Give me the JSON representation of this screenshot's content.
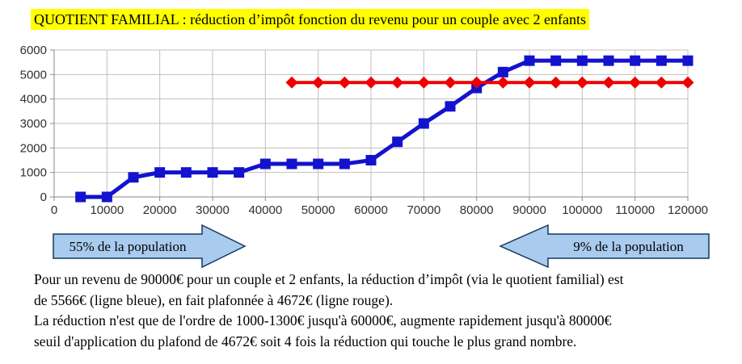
{
  "title": {
    "text": "QUOTIENT FAMILIAL : réduction d’impôt fonction du revenu pour un couple avec 2 enfants",
    "highlight_color": "#ffff00"
  },
  "chart_data": {
    "type": "line",
    "xlim": [
      0,
      120000
    ],
    "ylim": [
      0,
      6000
    ],
    "x_ticks": [
      0,
      10000,
      20000,
      30000,
      40000,
      50000,
      60000,
      70000,
      80000,
      90000,
      100000,
      110000,
      120000
    ],
    "y_ticks": [
      0,
      1000,
      2000,
      3000,
      4000,
      5000,
      6000
    ],
    "grid": true,
    "legend": "none",
    "series": [
      {
        "name": "ligne bleue (réduction d'impôt via le quotient familial)",
        "color": "#1212cf",
        "marker": "square",
        "x": [
          5000,
          10000,
          15000,
          20000,
          25000,
          30000,
          35000,
          40000,
          45000,
          50000,
          55000,
          60000,
          65000,
          70000,
          75000,
          80000,
          85000,
          90000,
          95000,
          100000,
          105000,
          110000,
          115000,
          120000
        ],
        "values": [
          0,
          0,
          800,
          1000,
          1000,
          1000,
          1000,
          1350,
          1350,
          1350,
          1350,
          1500,
          2250,
          3000,
          3700,
          4450,
          5100,
          5566,
          5566,
          5566,
          5566,
          5566,
          5566,
          5566
        ]
      },
      {
        "name": "ligne rouge (plafond 4672€)",
        "color": "#ee0000",
        "marker": "diamond",
        "x": [
          45000,
          50000,
          55000,
          60000,
          65000,
          70000,
          75000,
          80000,
          85000,
          90000,
          95000,
          100000,
          105000,
          110000,
          115000,
          120000
        ],
        "values": [
          4672,
          4672,
          4672,
          4672,
          4672,
          4672,
          4672,
          4672,
          4672,
          4672,
          4672,
          4672,
          4672,
          4672,
          4672,
          4672
        ]
      }
    ]
  },
  "annotations": {
    "left": {
      "label": "55% de la population"
    },
    "right": {
      "label": "9% de la population"
    }
  },
  "arrow_style": {
    "fill": "#a9cbee",
    "stroke": "#17375e"
  },
  "body_text": {
    "lines": [
      "Pour un revenu de 90000€ pour un couple et 2 enfants, la réduction d’impôt (via le quotient familial) est",
      "de 5566€ (ligne bleue), en fait plafonnée à 4672€ (ligne rouge).",
      "La réduction n'est que de l'ordre de 1000-1300€ jusqu'à 60000€, augmente rapidement jusqu'à 80000€",
      "seuil d'application du plafond de 4672€ soit 4 fois la réduction qui touche le plus grand nombre."
    ]
  },
  "colors": {
    "grid": "#bfbfbf",
    "axis": "#8a8a8a",
    "blue_line": "#1212cf",
    "red_line": "#ee0000"
  }
}
